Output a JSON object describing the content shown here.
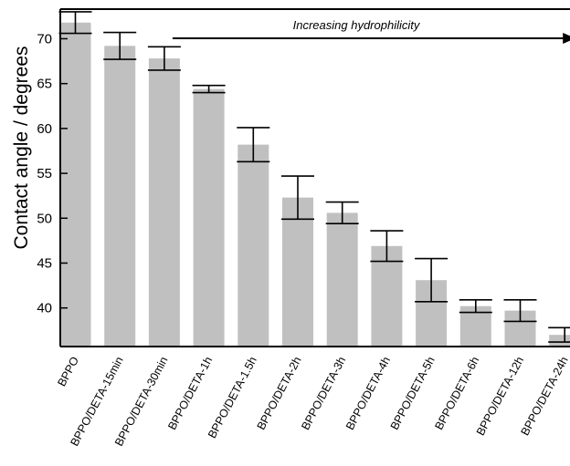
{
  "chart_data": {
    "type": "bar",
    "title": "",
    "xlabel": "",
    "ylabel": "Contact angle / degrees",
    "ylim": [
      35.7,
      73.3
    ],
    "yticks": [
      40,
      45,
      50,
      55,
      60,
      65,
      70
    ],
    "grid": false,
    "categories": [
      "BPPO",
      "BPPO/DETA-15min",
      "BPPO/DETA-30min",
      "BPPO/DETA-1h",
      "BPPO/DETA-1.5h",
      "BPPO/DETA-2h",
      "BPPO/DETA-3h",
      "BPPO/DETA-4h",
      "BPPO/DETA-5h",
      "BPPO/DETA-6h",
      "BPPO/DETA-12h",
      "BPPO/DETA-24h"
    ],
    "values": [
      71.8,
      69.2,
      67.8,
      64.4,
      58.2,
      52.3,
      50.6,
      46.9,
      43.1,
      40.2,
      39.7,
      37.0
    ],
    "errors": [
      1.2,
      1.5,
      1.3,
      0.4,
      1.9,
      2.4,
      1.2,
      1.7,
      2.4,
      0.7,
      1.2,
      0.8
    ],
    "bar_color": "#c0c0c0",
    "annotation": {
      "text": "Increasing hydrophilicity",
      "from_category": "BPPO/DETA-30min",
      "to_category": "BPPO/DETA-24h"
    }
  }
}
